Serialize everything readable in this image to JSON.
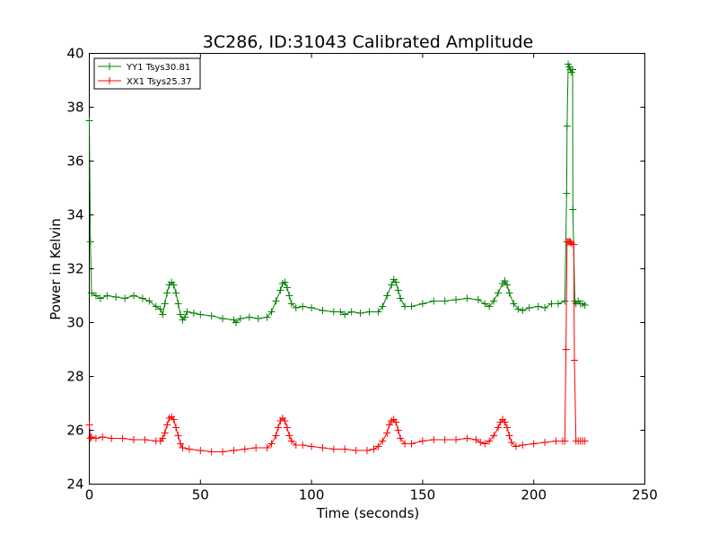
{
  "chart_data": {
    "type": "line",
    "title": "3C286, ID:31043 Calibrated Amplitude",
    "xlabel": "Time (seconds)",
    "ylabel": "Power in Kelvin",
    "xlim": [
      0,
      250
    ],
    "ylim": [
      24,
      40
    ],
    "xticks": [
      0,
      50,
      100,
      150,
      200,
      250
    ],
    "yticks": [
      24,
      26,
      28,
      30,
      32,
      34,
      36,
      38,
      40
    ],
    "grid": false,
    "legend_position": "top-left",
    "marker": "+",
    "series": [
      {
        "name": "YY1 Tsys30.81",
        "color": "#008000",
        "points": [
          [
            0,
            37.5
          ],
          [
            0.5,
            33.0
          ],
          [
            1,
            31.1
          ],
          [
            3,
            31.0
          ],
          [
            5,
            30.9
          ],
          [
            8,
            31.0
          ],
          [
            12,
            30.95
          ],
          [
            16,
            30.9
          ],
          [
            20,
            31.0
          ],
          [
            24,
            30.9
          ],
          [
            27,
            30.8
          ],
          [
            30,
            30.6
          ],
          [
            32,
            30.5
          ],
          [
            33,
            30.3
          ],
          [
            34,
            30.7
          ],
          [
            35,
            31.1
          ],
          [
            36,
            31.4
          ],
          [
            37,
            31.5
          ],
          [
            38,
            31.4
          ],
          [
            39,
            31.1
          ],
          [
            40,
            30.7
          ],
          [
            41,
            30.3
          ],
          [
            42,
            30.1
          ],
          [
            43,
            30.2
          ],
          [
            44,
            30.4
          ],
          [
            47,
            30.35
          ],
          [
            50,
            30.3
          ],
          [
            55,
            30.25
          ],
          [
            60,
            30.15
          ],
          [
            65,
            30.1
          ],
          [
            66,
            30.0
          ],
          [
            68,
            30.15
          ],
          [
            72,
            30.2
          ],
          [
            76,
            30.15
          ],
          [
            80,
            30.2
          ],
          [
            82,
            30.4
          ],
          [
            84,
            30.8
          ],
          [
            86,
            31.2
          ],
          [
            87,
            31.45
          ],
          [
            88,
            31.5
          ],
          [
            89,
            31.3
          ],
          [
            90,
            31.0
          ],
          [
            91,
            30.7
          ],
          [
            93,
            30.55
          ],
          [
            96,
            30.6
          ],
          [
            100,
            30.55
          ],
          [
            105,
            30.45
          ],
          [
            110,
            30.4
          ],
          [
            113,
            30.4
          ],
          [
            115,
            30.3
          ],
          [
            118,
            30.4
          ],
          [
            122,
            30.35
          ],
          [
            126,
            30.4
          ],
          [
            130,
            30.4
          ],
          [
            132,
            30.6
          ],
          [
            134,
            31.0
          ],
          [
            136,
            31.4
          ],
          [
            137,
            31.6
          ],
          [
            138,
            31.5
          ],
          [
            139,
            31.2
          ],
          [
            140,
            30.9
          ],
          [
            142,
            30.6
          ],
          [
            145,
            30.6
          ],
          [
            150,
            30.7
          ],
          [
            155,
            30.8
          ],
          [
            160,
            30.8
          ],
          [
            165,
            30.85
          ],
          [
            170,
            30.9
          ],
          [
            175,
            30.85
          ],
          [
            178,
            30.7
          ],
          [
            180,
            30.6
          ],
          [
            182,
            30.8
          ],
          [
            184,
            31.1
          ],
          [
            186,
            31.45
          ],
          [
            187,
            31.55
          ],
          [
            188,
            31.4
          ],
          [
            189,
            31.1
          ],
          [
            191,
            30.7
          ],
          [
            193,
            30.5
          ],
          [
            195,
            30.45
          ],
          [
            198,
            30.55
          ],
          [
            202,
            30.6
          ],
          [
            205,
            30.55
          ],
          [
            208,
            30.7
          ],
          [
            211,
            30.7
          ],
          [
            214,
            30.8
          ],
          [
            214.8,
            34.8
          ],
          [
            215,
            37.3
          ],
          [
            215.5,
            39.6
          ],
          [
            216,
            39.5
          ],
          [
            216.5,
            39.4
          ],
          [
            217,
            39.3
          ],
          [
            217.5,
            39.4
          ],
          [
            217.6,
            34.2
          ],
          [
            218.5,
            30.8
          ],
          [
            219,
            30.7
          ],
          [
            220,
            30.8
          ],
          [
            221,
            30.7
          ],
          [
            222,
            30.7
          ],
          [
            223,
            30.65
          ]
        ]
      },
      {
        "name": "XX1 Tsys25.37",
        "color": "#ff0000",
        "points": [
          [
            0,
            26.2
          ],
          [
            0.5,
            25.7
          ],
          [
            1,
            25.75
          ],
          [
            3,
            25.7
          ],
          [
            6,
            25.75
          ],
          [
            10,
            25.7
          ],
          [
            15,
            25.7
          ],
          [
            20,
            25.65
          ],
          [
            25,
            25.65
          ],
          [
            30,
            25.6
          ],
          [
            32,
            25.6
          ],
          [
            33,
            25.7
          ],
          [
            34,
            25.9
          ],
          [
            35,
            26.2
          ],
          [
            36,
            26.45
          ],
          [
            37,
            26.5
          ],
          [
            38,
            26.4
          ],
          [
            39,
            26.1
          ],
          [
            40,
            25.8
          ],
          [
            41,
            25.5
          ],
          [
            42,
            25.35
          ],
          [
            45,
            25.3
          ],
          [
            50,
            25.25
          ],
          [
            55,
            25.2
          ],
          [
            60,
            25.2
          ],
          [
            65,
            25.25
          ],
          [
            70,
            25.3
          ],
          [
            75,
            25.35
          ],
          [
            80,
            25.35
          ],
          [
            82,
            25.5
          ],
          [
            84,
            25.8
          ],
          [
            85,
            26.1
          ],
          [
            86,
            26.35
          ],
          [
            87,
            26.45
          ],
          [
            88,
            26.35
          ],
          [
            89,
            26.1
          ],
          [
            90,
            25.8
          ],
          [
            91,
            25.6
          ],
          [
            93,
            25.45
          ],
          [
            96,
            25.45
          ],
          [
            100,
            25.4
          ],
          [
            105,
            25.35
          ],
          [
            110,
            25.3
          ],
          [
            115,
            25.3
          ],
          [
            120,
            25.25
          ],
          [
            125,
            25.25
          ],
          [
            128,
            25.3
          ],
          [
            130,
            25.4
          ],
          [
            132,
            25.6
          ],
          [
            134,
            25.9
          ],
          [
            135,
            26.2
          ],
          [
            136,
            26.35
          ],
          [
            137,
            26.4
          ],
          [
            138,
            26.3
          ],
          [
            139,
            26.0
          ],
          [
            140,
            25.7
          ],
          [
            142,
            25.5
          ],
          [
            145,
            25.5
          ],
          [
            150,
            25.6
          ],
          [
            155,
            25.65
          ],
          [
            160,
            25.65
          ],
          [
            165,
            25.65
          ],
          [
            170,
            25.7
          ],
          [
            174,
            25.65
          ],
          [
            176,
            25.55
          ],
          [
            178,
            25.5
          ],
          [
            180,
            25.6
          ],
          [
            182,
            25.8
          ],
          [
            184,
            26.1
          ],
          [
            185,
            26.3
          ],
          [
            186,
            26.4
          ],
          [
            187,
            26.3
          ],
          [
            188,
            26.1
          ],
          [
            189,
            25.8
          ],
          [
            190,
            25.55
          ],
          [
            192,
            25.4
          ],
          [
            195,
            25.45
          ],
          [
            200,
            25.5
          ],
          [
            205,
            25.55
          ],
          [
            210,
            25.6
          ],
          [
            213,
            25.6
          ],
          [
            214,
            25.6
          ],
          [
            214.5,
            29.0
          ],
          [
            215,
            33.0
          ],
          [
            215.5,
            33.0
          ],
          [
            216,
            33.0
          ],
          [
            216.5,
            33.0
          ],
          [
            217,
            32.95
          ],
          [
            218,
            32.9
          ],
          [
            218.3,
            28.6
          ],
          [
            219,
            25.6
          ],
          [
            220,
            25.6
          ],
          [
            221,
            25.6
          ],
          [
            222,
            25.6
          ],
          [
            223,
            25.6
          ]
        ]
      }
    ]
  }
}
